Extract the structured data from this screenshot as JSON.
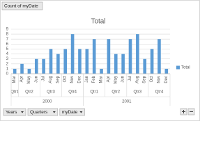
{
  "chart_data": {
    "type": "bar",
    "title": "Total",
    "years": [
      {
        "label": "2000",
        "quarters": [
          {
            "label": "Qtr1",
            "months": [
              "Mar"
            ]
          },
          {
            "label": "Qtr2",
            "months": [
              "Apr",
              "May",
              "Jun"
            ]
          },
          {
            "label": "Qtr3",
            "months": [
              "Jul",
              "Aug",
              "Sep"
            ]
          },
          {
            "label": "Qtr4",
            "months": [
              "Oct",
              "Nov",
              "Dec"
            ]
          }
        ]
      },
      {
        "label": "2001",
        "quarters": [
          {
            "label": "Qtr1",
            "months": [
              "Jan",
              "Feb",
              "Mar"
            ]
          },
          {
            "label": "Qtr2",
            "months": [
              "Apr",
              "May",
              "Jun"
            ]
          },
          {
            "label": "Qtr3",
            "months": [
              "Jul",
              "Aug",
              "Sep"
            ]
          },
          {
            "label": "Qtr4",
            "months": [
              "Oct",
              "Nov",
              "Dec"
            ]
          }
        ]
      }
    ],
    "series": [
      {
        "name": "Total",
        "color": "#5b9bd5",
        "values": [
          1,
          2,
          1,
          3,
          3,
          5,
          4,
          5,
          8,
          5,
          5,
          7,
          1,
          7,
          4,
          4,
          7,
          8,
          3,
          5,
          7,
          1
        ]
      }
    ],
    "ylim": [
      0,
      9
    ],
    "yticks": [
      0,
      1,
      2,
      3,
      4,
      5,
      6,
      7,
      8,
      9
    ],
    "grid": true,
    "legend": "right"
  },
  "ui": {
    "value_button": "Count of myDate",
    "axis_buttons": [
      "Years",
      "Quarters",
      "myDate"
    ]
  }
}
